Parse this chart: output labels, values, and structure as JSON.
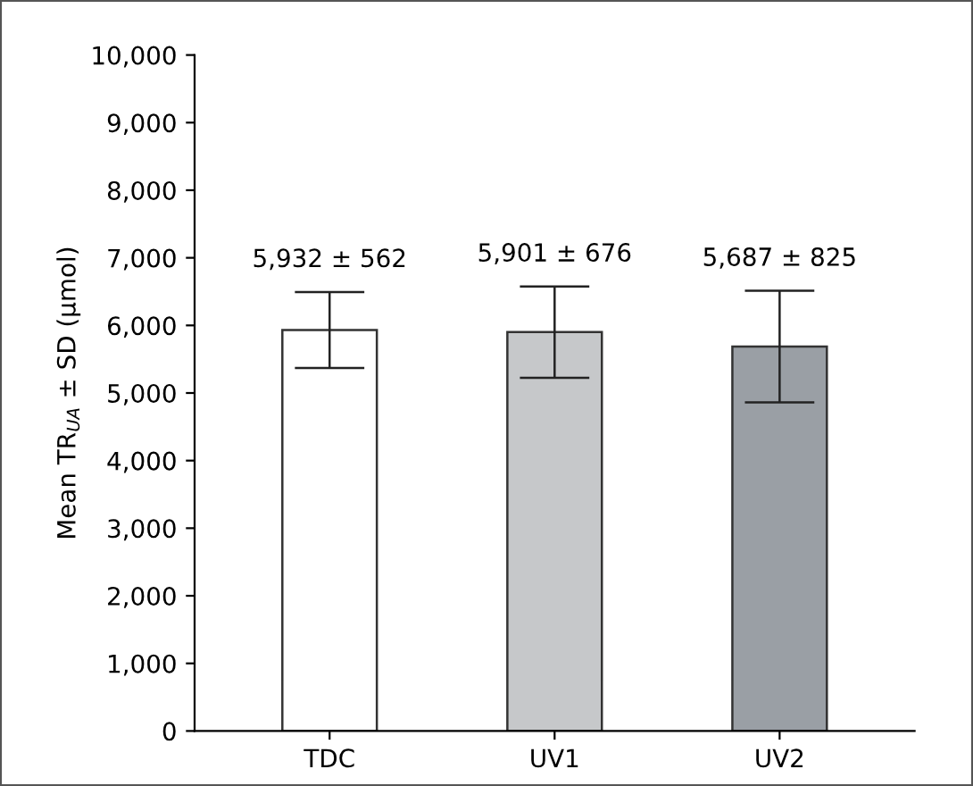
{
  "chart_data": {
    "type": "bar",
    "ylabel": "Mean TR$_{UA}$ ± SD (μmol)",
    "categories": [
      "TDC",
      "UV1",
      "UV2"
    ],
    "values": [
      5932,
      5901,
      5687
    ],
    "errors": [
      562,
      676,
      825
    ],
    "colors": [
      "#ffffff",
      "#c6c8ca",
      "#9a9fa5"
    ],
    "value_labels": [
      "5,932 ± 562",
      "5,901 ± 676",
      "5,687 ± 825"
    ],
    "ylim": [
      0,
      10000
    ],
    "yticks": [
      {
        "value": 0,
        "label": "0"
      },
      {
        "value": 1000,
        "label": "1,000"
      },
      {
        "value": 2000,
        "label": "2,000"
      },
      {
        "value": 3000,
        "label": "3,000"
      },
      {
        "value": 4000,
        "label": "4,000"
      },
      {
        "value": 5000,
        "label": "5,000"
      },
      {
        "value": 6000,
        "label": "6,000"
      },
      {
        "value": 7000,
        "label": "7,000"
      },
      {
        "value": 8000,
        "label": "8,000"
      },
      {
        "value": 9000,
        "label": "9,000"
      },
      {
        "value": 10000,
        "label": "10,000"
      }
    ],
    "grid": false,
    "legend": false
  }
}
